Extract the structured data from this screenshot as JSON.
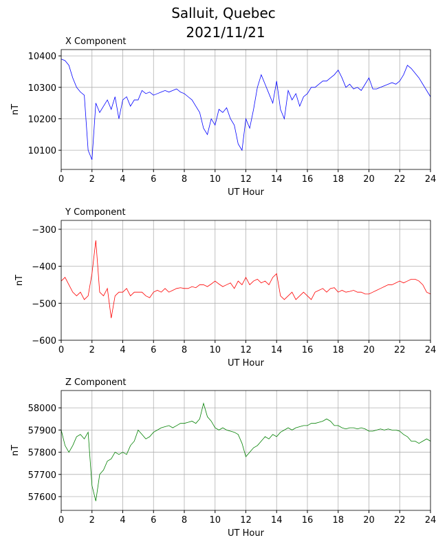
{
  "title": "Salluit, Quebec",
  "date": "2021/11/21",
  "chart_data": [
    {
      "type": "line",
      "title": "X Component",
      "xlabel": "UT Hour",
      "ylabel": "nT",
      "color": "#0000ff",
      "grid": true,
      "xlim": [
        0,
        24
      ],
      "xticks": [
        0,
        2,
        4,
        6,
        8,
        10,
        12,
        14,
        16,
        18,
        20,
        22,
        24
      ],
      "ylim": [
        10039,
        10420
      ],
      "yticks": [
        10100,
        10200,
        10300,
        10400
      ],
      "x": [
        0,
        0.25,
        0.5,
        0.75,
        1,
        1.25,
        1.5,
        1.75,
        2,
        2.25,
        2.5,
        2.75,
        3,
        3.25,
        3.5,
        3.75,
        4,
        4.25,
        4.5,
        4.75,
        5,
        5.25,
        5.5,
        5.75,
        6,
        6.25,
        6.5,
        6.75,
        7,
        7.25,
        7.5,
        7.75,
        8,
        8.25,
        8.5,
        8.75,
        9,
        9.25,
        9.5,
        9.75,
        10,
        10.25,
        10.5,
        10.75,
        11,
        11.25,
        11.5,
        11.75,
        12,
        12.25,
        12.5,
        12.75,
        13,
        13.25,
        13.5,
        13.75,
        14,
        14.25,
        14.5,
        14.75,
        15,
        15.25,
        15.5,
        15.75,
        16,
        16.25,
        16.5,
        16.75,
        17,
        17.25,
        17.5,
        17.75,
        18,
        18.25,
        18.5,
        18.75,
        19,
        19.25,
        19.5,
        19.75,
        20,
        20.25,
        20.5,
        20.75,
        21,
        21.25,
        21.5,
        21.75,
        22,
        22.25,
        22.5,
        22.75,
        23,
        23.25,
        23.5,
        23.75,
        24
      ],
      "values": [
        10390,
        10385,
        10370,
        10330,
        10300,
        10285,
        10275,
        10100,
        10070,
        10250,
        10220,
        10240,
        10260,
        10230,
        10270,
        10200,
        10260,
        10270,
        10240,
        10260,
        10260,
        10290,
        10280,
        10285,
        10275,
        10280,
        10285,
        10290,
        10285,
        10290,
        10295,
        10285,
        10280,
        10270,
        10260,
        10240,
        10220,
        10170,
        10150,
        10200,
        10180,
        10230,
        10220,
        10235,
        10200,
        10180,
        10120,
        10100,
        10200,
        10170,
        10230,
        10300,
        10340,
        10310,
        10280,
        10250,
        10320,
        10230,
        10200,
        10290,
        10260,
        10280,
        10240,
        10270,
        10280,
        10300,
        10300,
        10310,
        10320,
        10320,
        10330,
        10340,
        10355,
        10330,
        10300,
        10310,
        10295,
        10300,
        10290,
        10310,
        10330,
        10295,
        10295,
        10300,
        10305,
        10310,
        10315,
        10310,
        10320,
        10340,
        10370,
        10360,
        10345,
        10330,
        10310,
        10290,
        10270
      ]
    },
    {
      "type": "line",
      "title": "Y Component",
      "xlabel": "UT Hour",
      "ylabel": "nT",
      "color": "#ff0000",
      "grid": true,
      "xlim": [
        0,
        24
      ],
      "xticks": [
        0,
        2,
        4,
        6,
        8,
        10,
        12,
        14,
        16,
        18,
        20,
        22,
        24
      ],
      "ylim": [
        -600,
        -276
      ],
      "yticks": [
        {
          "value": -600,
          "label": "−600"
        },
        {
          "value": -500,
          "label": "−500"
        },
        {
          "value": -400,
          "label": "−400"
        },
        {
          "value": -300,
          "label": "−300"
        }
      ],
      "x": [
        0,
        0.25,
        0.5,
        0.75,
        1,
        1.25,
        1.5,
        1.75,
        2,
        2.25,
        2.5,
        2.75,
        3,
        3.25,
        3.5,
        3.75,
        4,
        4.25,
        4.5,
        4.75,
        5,
        5.25,
        5.5,
        5.75,
        6,
        6.25,
        6.5,
        6.75,
        7,
        7.25,
        7.5,
        7.75,
        8,
        8.25,
        8.5,
        8.75,
        9,
        9.25,
        9.5,
        9.75,
        10,
        10.25,
        10.5,
        10.75,
        11,
        11.25,
        11.5,
        11.75,
        12,
        12.25,
        12.5,
        12.75,
        13,
        13.25,
        13.5,
        13.75,
        14,
        14.25,
        14.5,
        14.75,
        15,
        15.25,
        15.5,
        15.75,
        16,
        16.25,
        16.5,
        16.75,
        17,
        17.25,
        17.5,
        17.75,
        18,
        18.25,
        18.5,
        18.75,
        19,
        19.25,
        19.5,
        19.75,
        20,
        20.25,
        20.5,
        20.75,
        21,
        21.25,
        21.5,
        21.75,
        22,
        22.25,
        22.5,
        22.75,
        23,
        23.25,
        23.5,
        23.75,
        24
      ],
      "values": [
        -440,
        -430,
        -450,
        -470,
        -480,
        -470,
        -490,
        -480,
        -420,
        -330,
        -470,
        -480,
        -460,
        -540,
        -480,
        -470,
        -470,
        -460,
        -480,
        -470,
        -470,
        -470,
        -480,
        -485,
        -470,
        -465,
        -470,
        -460,
        -470,
        -465,
        -460,
        -458,
        -460,
        -460,
        -455,
        -458,
        -450,
        -450,
        -455,
        -448,
        -440,
        -448,
        -455,
        -450,
        -445,
        -460,
        -440,
        -450,
        -430,
        -450,
        -440,
        -435,
        -445,
        -440,
        -450,
        -430,
        -420,
        -480,
        -490,
        -480,
        -470,
        -490,
        -480,
        -470,
        -480,
        -490,
        -470,
        -465,
        -460,
        -470,
        -460,
        -458,
        -470,
        -465,
        -470,
        -468,
        -465,
        -470,
        -470,
        -475,
        -475,
        -470,
        -465,
        -460,
        -455,
        -450,
        -450,
        -445,
        -440,
        -445,
        -440,
        -435,
        -435,
        -440,
        -450,
        -470,
        -475
      ]
    },
    {
      "type": "line",
      "title": "Z Component",
      "xlabel": "UT Hour",
      "ylabel": "nT",
      "color": "#008000",
      "grid": true,
      "xlim": [
        0,
        24
      ],
      "xticks": [
        0,
        2,
        4,
        6,
        8,
        10,
        12,
        14,
        16,
        18,
        20,
        22,
        24
      ],
      "ylim": [
        57538,
        58078
      ],
      "yticks": [
        57600,
        57700,
        57800,
        57900,
        58000
      ],
      "x": [
        0,
        0.25,
        0.5,
        0.75,
        1,
        1.25,
        1.5,
        1.75,
        2,
        2.25,
        2.5,
        2.75,
        3,
        3.25,
        3.5,
        3.75,
        4,
        4.25,
        4.5,
        4.75,
        5,
        5.25,
        5.5,
        5.75,
        6,
        6.25,
        6.5,
        6.75,
        7,
        7.25,
        7.5,
        7.75,
        8,
        8.25,
        8.5,
        8.75,
        9,
        9.25,
        9.5,
        9.75,
        10,
        10.25,
        10.5,
        10.75,
        11,
        11.25,
        11.5,
        11.75,
        12,
        12.25,
        12.5,
        12.75,
        13,
        13.25,
        13.5,
        13.75,
        14,
        14.25,
        14.5,
        14.75,
        15,
        15.25,
        15.5,
        15.75,
        16,
        16.25,
        16.5,
        16.75,
        17,
        17.25,
        17.5,
        17.75,
        18,
        18.25,
        18.5,
        18.75,
        19,
        19.25,
        19.5,
        19.75,
        20,
        20.25,
        20.5,
        20.75,
        21,
        21.25,
        21.5,
        21.75,
        22,
        22.25,
        22.5,
        22.75,
        23,
        23.25,
        23.5,
        23.75,
        24
      ],
      "values": [
        57900,
        57830,
        57800,
        57830,
        57870,
        57880,
        57860,
        57890,
        57650,
        57580,
        57700,
        57720,
        57760,
        57770,
        57800,
        57790,
        57800,
        57790,
        57830,
        57850,
        57900,
        57880,
        57860,
        57870,
        57890,
        57900,
        57910,
        57915,
        57920,
        57910,
        57920,
        57930,
        57930,
        57935,
        57940,
        57930,
        57950,
        58020,
        57960,
        57940,
        57910,
        57900,
        57910,
        57900,
        57895,
        57890,
        57880,
        57840,
        57780,
        57800,
        57820,
        57830,
        57850,
        57870,
        57860,
        57880,
        57870,
        57890,
        57900,
        57910,
        57900,
        57910,
        57915,
        57920,
        57920,
        57930,
        57930,
        57935,
        57940,
        57950,
        57940,
        57920,
        57920,
        57910,
        57905,
        57910,
        57910,
        57905,
        57910,
        57905,
        57895,
        57895,
        57900,
        57905,
        57900,
        57905,
        57900,
        57900,
        57895,
        57880,
        57870,
        57850,
        57850,
        57840,
        57850,
        57860,
        57850
      ]
    }
  ]
}
